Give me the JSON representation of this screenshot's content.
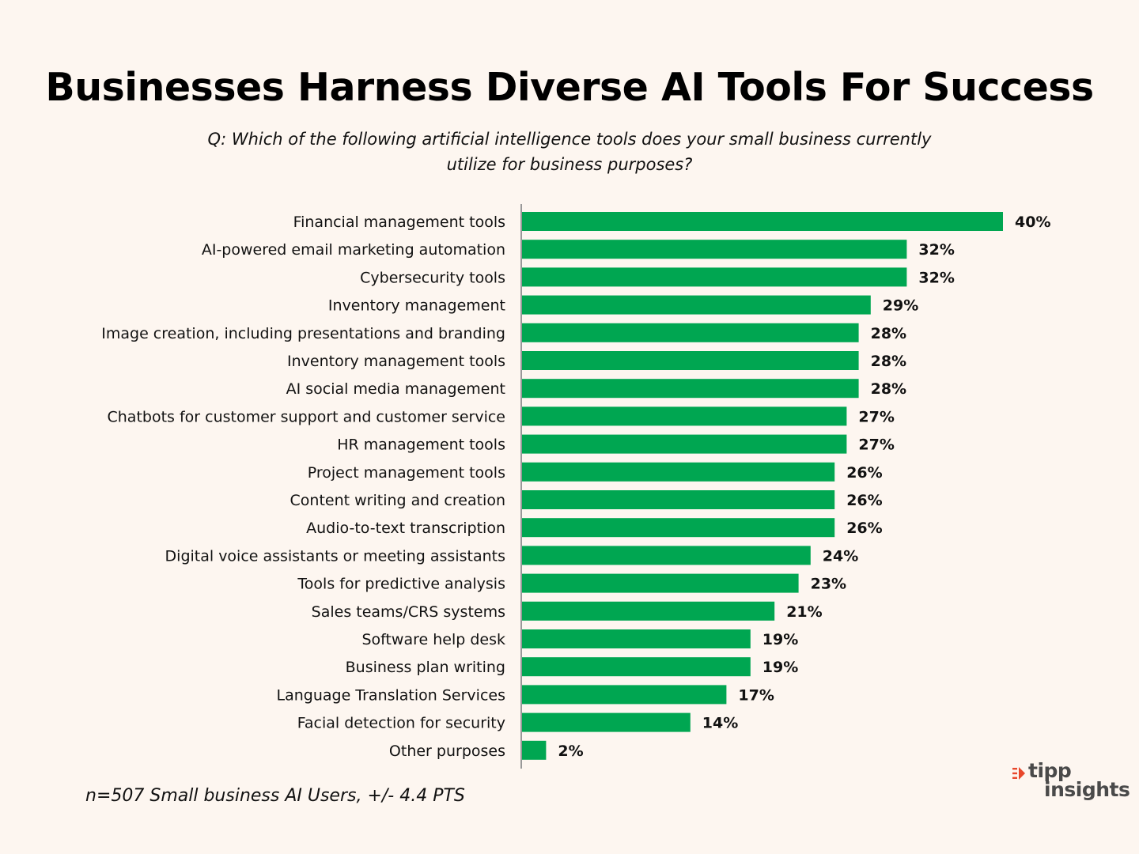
{
  "header": {
    "title": "Businesses Harness Diverse AI Tools For Success",
    "subtitle_line1": "Q: Which of the following artificial intelligence tools does your small business currently",
    "subtitle_line2": "utilize for business purposes?"
  },
  "footnote": "n=507 Small business AI Users, +/- 4.4 PTS",
  "logo": {
    "name_top": "tipp",
    "name_bottom": "insights",
    "icon": "tipp-arrow-logo-icon",
    "colors": {
      "mark": "#e8472b",
      "text": "#4a4a4a"
    }
  },
  "colors": {
    "background": "#fdf6f0",
    "bar": "#00a651",
    "axis": "#999999",
    "text": "#111111"
  },
  "chart_data": {
    "type": "bar",
    "orientation": "horizontal",
    "title": "Businesses Harness Diverse AI Tools For Success",
    "categories": [
      "Financial management tools",
      "AI-powered email marketing automation",
      "Cybersecurity tools",
      "Inventory management",
      "Image creation, including presentations and branding",
      "Inventory management tools",
      "AI social media management",
      "Chatbots for customer support and customer service",
      "HR management tools",
      "Project management tools",
      "Content writing and creation",
      "Audio-to-text transcription",
      "Digital voice assistants or meeting assistants",
      "Tools for predictive analysis",
      "Sales teams/CRS systems",
      "Software help desk",
      "Business plan writing",
      "Language Translation Services",
      "Facial detection for security",
      "Other purposes"
    ],
    "values": [
      40,
      32,
      32,
      29,
      28,
      28,
      28,
      27,
      27,
      26,
      26,
      26,
      24,
      23,
      21,
      19,
      19,
      17,
      14,
      2
    ],
    "value_labels": [
      "40%",
      "32%",
      "32%",
      "29%",
      "28%",
      "28%",
      "28%",
      "27%",
      "27%",
      "26%",
      "26%",
      "26%",
      "24%",
      "23%",
      "21%",
      "19%",
      "19%",
      "17%",
      "14%",
      "2%"
    ],
    "units": "%",
    "xlim": [
      0,
      40
    ],
    "grid": false,
    "legend": "none"
  }
}
